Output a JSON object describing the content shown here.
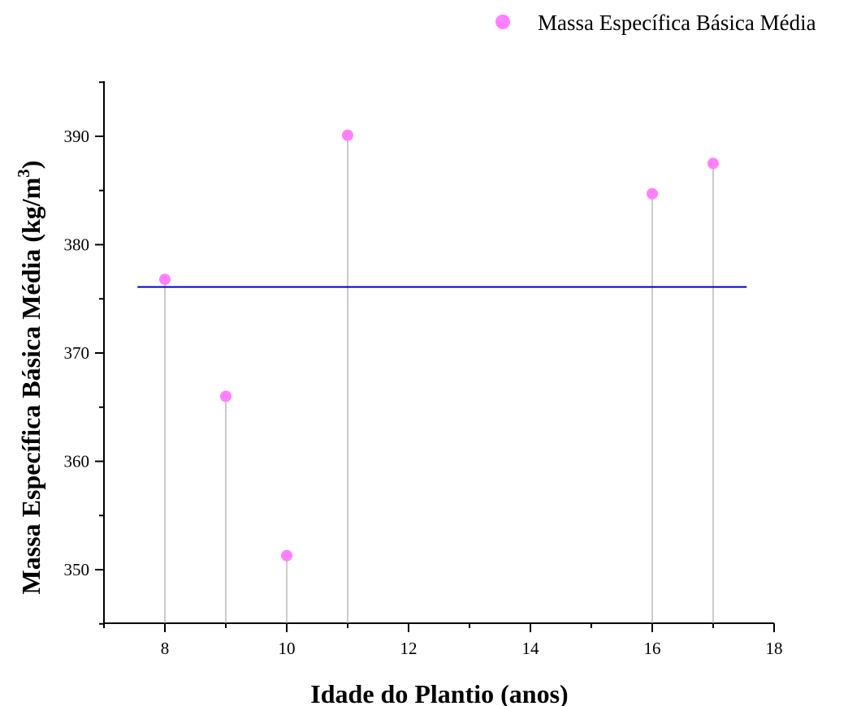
{
  "chart_data": {
    "type": "scatter",
    "title": "",
    "xlabel": "Idade do Plantio (anos)",
    "ylabel_main": "Massa Específica Básica Média (kg/m",
    "ylabel_sup": "3",
    "ylabel_end": ")",
    "xlim": [
      7,
      18
    ],
    "ylim": [
      345,
      395
    ],
    "x_ticks": [
      8,
      10,
      12,
      14,
      16,
      18
    ],
    "y_ticks": [
      350,
      360,
      370,
      380,
      390
    ],
    "grid": false,
    "legend_position": "top-right",
    "series": [
      {
        "name": "Massa Específica Básica Média",
        "color": "#ff80ff",
        "x": [
          8,
          9,
          10,
          11,
          16,
          17
        ],
        "y": [
          376.8,
          366.0,
          351.3,
          390.1,
          384.7,
          387.5
        ],
        "drop_lines": true
      }
    ],
    "reference_line": {
      "y": 376.1,
      "x_range": [
        7.55,
        17.55
      ],
      "color": "#0000cc"
    }
  }
}
